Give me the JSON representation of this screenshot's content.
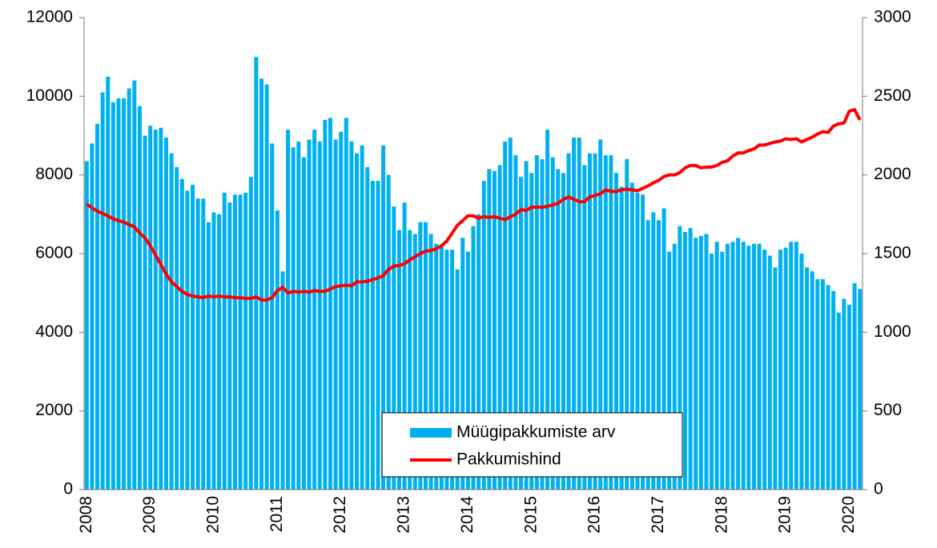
{
  "chart_data": {
    "type": "bar_line",
    "categories": [
      "2008",
      null,
      null,
      null,
      null,
      null,
      null,
      null,
      null,
      null,
      null,
      null,
      "2009",
      null,
      null,
      null,
      null,
      null,
      null,
      null,
      null,
      null,
      null,
      null,
      "2010",
      null,
      null,
      null,
      null,
      null,
      null,
      null,
      null,
      null,
      null,
      null,
      "2011",
      null,
      null,
      null,
      null,
      null,
      null,
      null,
      null,
      null,
      null,
      null,
      "2012",
      null,
      null,
      null,
      null,
      null,
      null,
      null,
      null,
      null,
      null,
      null,
      "2013",
      null,
      null,
      null,
      null,
      null,
      null,
      null,
      null,
      null,
      null,
      null,
      "2014",
      null,
      null,
      null,
      null,
      null,
      null,
      null,
      null,
      null,
      null,
      null,
      "2015",
      null,
      null,
      null,
      null,
      null,
      null,
      null,
      null,
      null,
      null,
      null,
      "2016",
      null,
      null,
      null,
      null,
      null,
      null,
      null,
      null,
      null,
      null,
      null,
      "2017",
      null,
      null,
      null,
      null,
      null,
      null,
      null,
      null,
      null,
      null,
      null,
      "2018",
      null,
      null,
      null,
      null,
      null,
      null,
      null,
      null,
      null,
      null,
      null,
      "2019",
      null,
      null,
      null,
      null,
      null,
      null,
      null,
      null,
      null,
      null,
      null,
      "2020",
      null,
      null
    ],
    "series": [
      {
        "name": "Müügipakkumiste arv",
        "color": "#00b0f0",
        "type": "bar",
        "values": [
          8350,
          8800,
          9300,
          10100,
          10500,
          9850,
          9950,
          9950,
          10200,
          10400,
          9750,
          9000,
          9250,
          9150,
          9200,
          8950,
          8550,
          8200,
          7900,
          7600,
          7750,
          7400,
          7400,
          6800,
          7050,
          7000,
          7550,
          7300,
          7500,
          7500,
          7550,
          7950,
          11000,
          10450,
          10300,
          8800,
          7100,
          5550,
          9150,
          8700,
          8850,
          8450,
          8900,
          9150,
          8850,
          9400,
          9450,
          8900,
          9100,
          9450,
          8850,
          8550,
          8750,
          8200,
          7850,
          7850,
          8750,
          8000,
          7200,
          6600,
          7300,
          6600,
          6500,
          6800,
          6800,
          6500,
          6250,
          6200,
          6100,
          6100,
          5600,
          6400,
          6050,
          6700,
          7000,
          7850,
          8150,
          8100,
          8250,
          8850,
          8950,
          8500,
          7950,
          8350,
          8050,
          8500,
          8400,
          9150,
          8450,
          8150,
          8050,
          8550,
          8950,
          8950,
          8250,
          8550,
          8550,
          8900,
          8500,
          8500,
          8050,
          7700,
          8400,
          7800,
          7550,
          7500,
          6850,
          7050,
          6850,
          7150,
          6050,
          6250,
          6700,
          6550,
          6650,
          6400,
          6450,
          6500,
          6000,
          6300,
          6050,
          6250,
          6300,
          6400,
          6300,
          6200,
          6250,
          6250,
          6100,
          5950,
          5650,
          6100,
          6150,
          6300,
          6300,
          6000,
          5650,
          5550,
          5350,
          5350,
          5200,
          5050,
          4500,
          4850,
          4700,
          5250,
          5100
        ]
      },
      {
        "name": "Pakkumishind",
        "color": "#ff0000",
        "type": "line",
        "axis": "y2",
        "values": [
          1815,
          1790,
          1770,
          1755,
          1740,
          1720,
          1710,
          1700,
          1685,
          1670,
          1630,
          1600,
          1550,
          1490,
          1430,
          1370,
          1320,
          1290,
          1260,
          1240,
          1230,
          1225,
          1220,
          1230,
          1225,
          1230,
          1225,
          1225,
          1220,
          1220,
          1215,
          1215,
          1225,
          1205,
          1205,
          1220,
          1265,
          1285,
          1250,
          1260,
          1255,
          1260,
          1255,
          1265,
          1260,
          1260,
          1275,
          1290,
          1295,
          1300,
          1295,
          1320,
          1320,
          1325,
          1335,
          1345,
          1360,
          1400,
          1420,
          1425,
          1435,
          1460,
          1480,
          1500,
          1515,
          1520,
          1530,
          1550,
          1580,
          1630,
          1680,
          1710,
          1740,
          1740,
          1725,
          1735,
          1730,
          1735,
          1725,
          1715,
          1735,
          1750,
          1780,
          1775,
          1795,
          1795,
          1795,
          1800,
          1810,
          1820,
          1845,
          1860,
          1845,
          1830,
          1830,
          1860,
          1870,
          1880,
          1905,
          1895,
          1895,
          1905,
          1910,
          1905,
          1900,
          1915,
          1930,
          1950,
          1965,
          1990,
          2000,
          2000,
          2015,
          2045,
          2060,
          2060,
          2045,
          2050,
          2050,
          2060,
          2080,
          2090,
          2120,
          2140,
          2140,
          2155,
          2165,
          2190,
          2190,
          2200,
          2210,
          2215,
          2230,
          2225,
          2230,
          2210,
          2225,
          2240,
          2260,
          2275,
          2270,
          2310,
          2325,
          2330,
          2405,
          2415,
          2350
        ]
      }
    ],
    "ylim": [
      0,
      12000
    ],
    "yticks": [
      0,
      2000,
      4000,
      6000,
      8000,
      10000,
      12000
    ],
    "y2lim": [
      0,
      3000
    ],
    "y2ticks": [
      0,
      500,
      1000,
      1500,
      2000,
      2500,
      3000
    ]
  }
}
